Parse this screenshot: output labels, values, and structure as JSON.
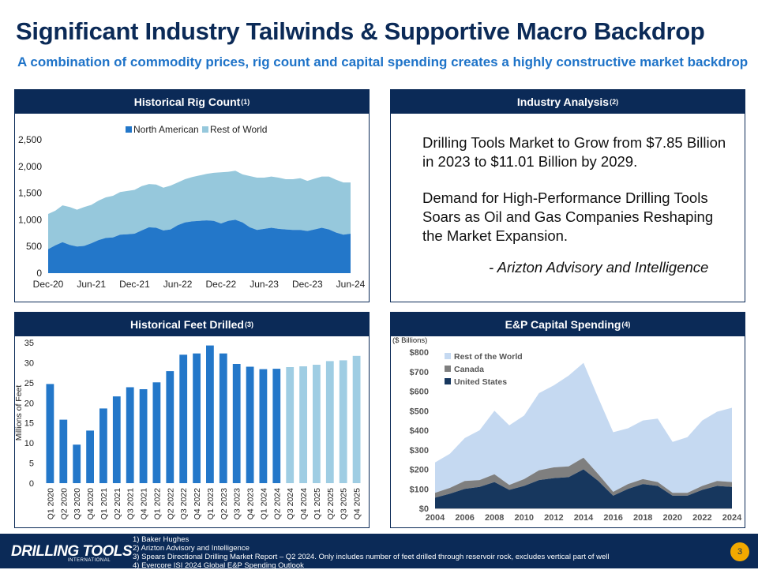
{
  "page": {
    "title": "Significant Industry Tailwinds & Supportive Macro Backdrop",
    "subtitle": "A combination of commodity prices, rig count and capital spending creates a highly constructive market backdrop",
    "page_number": "3"
  },
  "panels": {
    "rig": {
      "title": "Historical Rig Count",
      "sup": "(1)"
    },
    "analysis": {
      "title": "Industry Analysis",
      "sup": "(2)"
    },
    "feet": {
      "title": "Historical Feet Drilled",
      "sup": "(3)"
    },
    "capex": {
      "title": "E&P Capital Spending",
      "sup": "(4)"
    }
  },
  "analysis": {
    "paragraph1": "Drilling Tools Market to Grow from $7.85 Billion in 2023 to $11.01 Billion by 2029.",
    "paragraph2": "Demand for High-Performance Drilling Tools Soars as Oil and Gas Companies Reshaping the Market Expansion.",
    "attribution": "- Arizton Advisory and Intelligence"
  },
  "footer": {
    "logo": "DRILLING TOOLS",
    "logo_sub": "INTERNATIONAL",
    "notes": [
      "1) Baker Hughes",
      "2) Arizton Advisory and Intelligence",
      "3) Spears Directional Drilling Market Report – Q2 2024. Only includes number of feet drilled through reservoir rock, excludes vertical part of well",
      "4) Evercore ISI 2024 Global E&P Spending Outlook"
    ]
  },
  "colors": {
    "navy": "#0b2a57",
    "accent_blue": "#1e73c8",
    "na_blue": "#2377c9",
    "row_light": "#96c8dc",
    "forecast_light": "#9fcde3",
    "capex_row": "#c5d9f1",
    "capex_canada": "#7f7f7f",
    "capex_us": "#17375e"
  },
  "chart_data": [
    {
      "type": "area",
      "title": "Historical Rig Count",
      "legend": [
        "North American",
        "Rest of World"
      ],
      "x_ticks": [
        "Dec-20",
        "Jun-21",
        "Dec-21",
        "Jun-22",
        "Dec-22",
        "Jun-23",
        "Dec-23",
        "Jun-24"
      ],
      "y_ticks": [
        "0",
        "500",
        "1,000",
        "1,500",
        "2,000",
        "2,500"
      ],
      "ylim": [
        0,
        2500
      ],
      "series": [
        {
          "name": "North American",
          "values": [
            450,
            520,
            580,
            530,
            500,
            510,
            560,
            620,
            660,
            670,
            720,
            730,
            740,
            800,
            860,
            850,
            800,
            820,
            900,
            950,
            970,
            980,
            990,
            980,
            930,
            980,
            1000,
            950,
            860,
            810,
            830,
            850,
            830,
            820,
            810,
            810,
            790,
            820,
            850,
            820,
            760,
            720,
            740
          ]
        },
        {
          "name": "Rest of World",
          "values": [
            660,
            650,
            690,
            710,
            690,
            730,
            720,
            740,
            760,
            780,
            800,
            810,
            820,
            830,
            810,
            810,
            800,
            820,
            800,
            810,
            830,
            850,
            870,
            900,
            960,
            920,
            920,
            900,
            960,
            980,
            960,
            960,
            960,
            940,
            950,
            970,
            940,
            950,
            960,
            990,
            990,
            980,
            960
          ]
        }
      ]
    },
    {
      "type": "bar",
      "title": "Historical Feet Drilled",
      "ylabel": "Millions of Feet",
      "ylim": [
        0,
        35
      ],
      "y_ticks": [
        "0",
        "5",
        "10",
        "15",
        "20",
        "25",
        "30",
        "35"
      ],
      "categories": [
        "Q1 2020",
        "Q2 2020",
        "Q3 2020",
        "Q4 2020",
        "Q1 2021",
        "Q2 2021",
        "Q3 2021",
        "Q4 2021",
        "Q1 2022",
        "Q2 2022",
        "Q3 2022",
        "Q4 2022",
        "Q1 2023",
        "Q2 2023",
        "Q3 2023",
        "Q4 2023",
        "Q1 2024",
        "Q2 2024",
        "Q3 2024",
        "Q4 2024",
        "Q1 2025",
        "Q2 2025",
        "Q3 2025",
        "Q4 2025"
      ],
      "values": [
        24.7,
        15.8,
        9.6,
        13.1,
        18.6,
        21.6,
        23.9,
        23.4,
        25.1,
        27.9,
        32.0,
        32.3,
        34.3,
        32.3,
        29.7,
        29.0,
        28.4,
        28.5,
        28.9,
        29.1,
        29.5,
        30.4,
        30.6,
        31.7
      ],
      "forecast_from_index": 18
    },
    {
      "type": "area",
      "title": "E&P Capital Spending",
      "unit_label": "($ Billions)",
      "legend": [
        "Rest of the World",
        "Canada",
        "United States"
      ],
      "ylim": [
        0,
        800
      ],
      "y_ticks": [
        "$0",
        "$100",
        "$200",
        "$300",
        "$400",
        "$500",
        "$600",
        "$700",
        "$800"
      ],
      "x": [
        2004,
        2005,
        2006,
        2007,
        2008,
        2009,
        2010,
        2011,
        2012,
        2013,
        2014,
        2015,
        2016,
        2017,
        2018,
        2019,
        2020,
        2021,
        2022,
        2023,
        2024
      ],
      "x_ticks": [
        "2004",
        "2006",
        "2008",
        "2010",
        "2012",
        "2014",
        "2016",
        "2018",
        "2020",
        "2022",
        "2024"
      ],
      "series": [
        {
          "name": "United States",
          "values": [
            55,
            75,
            100,
            110,
            135,
            95,
            115,
            145,
            155,
            160,
            200,
            140,
            65,
            100,
            125,
            115,
            65,
            65,
            95,
            115,
            110
          ]
        },
        {
          "name": "Canada",
          "values": [
            25,
            30,
            40,
            35,
            40,
            25,
            35,
            50,
            55,
            55,
            60,
            35,
            20,
            25,
            25,
            20,
            15,
            15,
            20,
            25,
            25
          ]
        },
        {
          "name": "Rest of the World",
          "values": [
            155,
            175,
            220,
            255,
            325,
            305,
            325,
            395,
            420,
            465,
            485,
            390,
            305,
            285,
            300,
            325,
            260,
            285,
            335,
            355,
            380
          ]
        }
      ]
    }
  ]
}
